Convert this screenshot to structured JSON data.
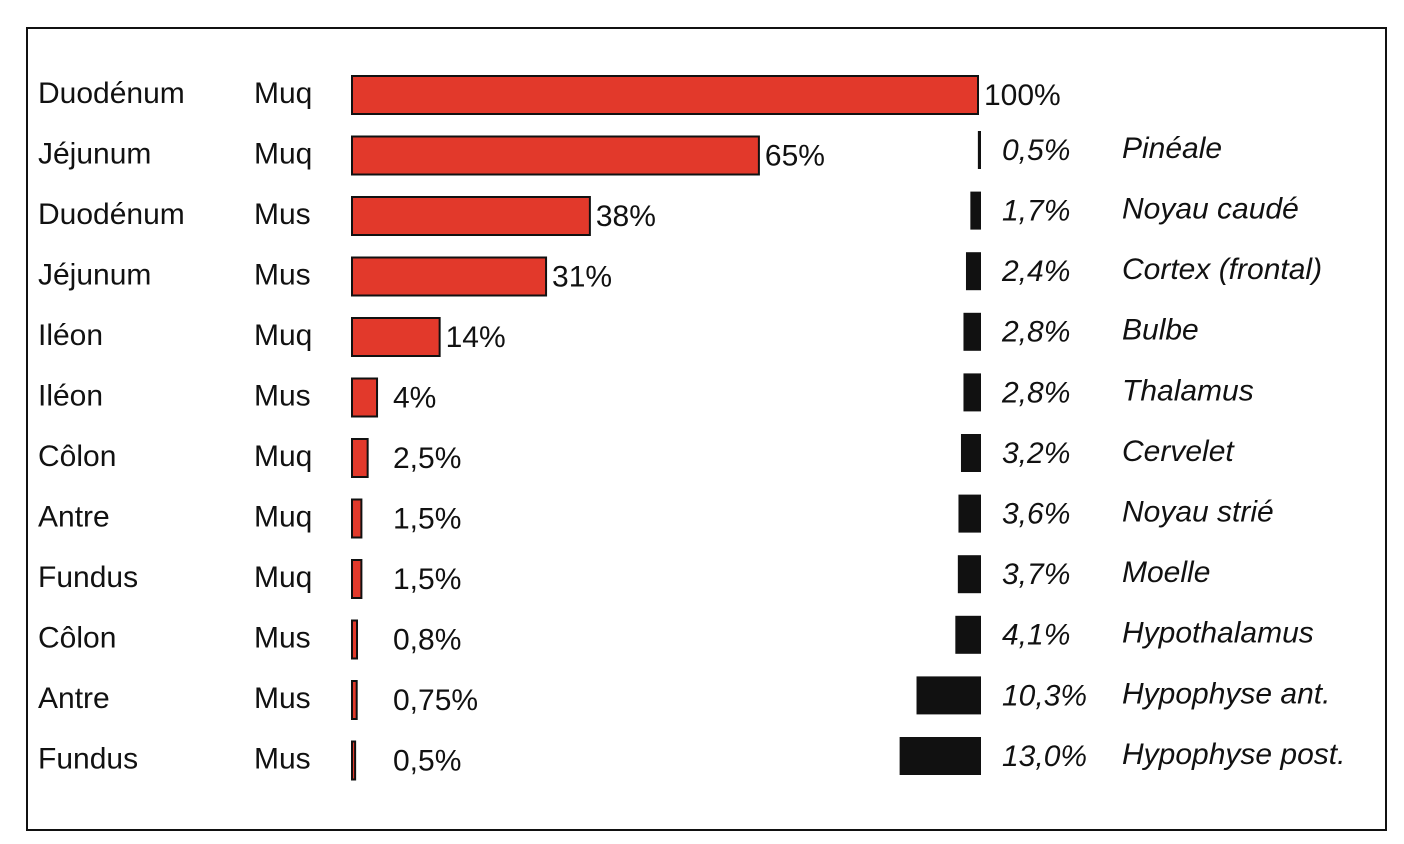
{
  "chart_data": [
    {
      "type": "bar",
      "categories": [
        "Duodénum",
        "Jéjunum",
        "Duodénum",
        "Jéjunum",
        "Iléon",
        "Iléon",
        "Côlon",
        "Antre",
        "Fundus",
        "Côlon",
        "Antre",
        "Fundus"
      ],
      "tissues": [
        "Muq",
        "Muq",
        "Mus",
        "Mus",
        "Muq",
        "Mus",
        "Muq",
        "Muq",
        "Muq",
        "Mus",
        "Mus",
        "Mus"
      ],
      "values": [
        100,
        65,
        38,
        31,
        14,
        4,
        2.5,
        1.5,
        1.5,
        0.8,
        0.75,
        0.5
      ],
      "value_labels": [
        "100%",
        "65%",
        "38%",
        "31%",
        "14%",
        "4%",
        "2,5%",
        "1,5%",
        "1,5%",
        "0,8%",
        "0,75%",
        "0,5%"
      ],
      "color": "#e2392b",
      "xlim": [
        0,
        100
      ]
    },
    {
      "type": "bar",
      "categories": [
        "Pinéale",
        "Noyau caudé",
        "Cortex (frontal)",
        "Bulbe",
        "Thalamus",
        "Cervelet",
        "Noyau strié",
        "Moelle",
        "Hypothalamus",
        "Hypophyse ant.",
        "Hypophyse post."
      ],
      "values": [
        0.5,
        1.7,
        2.4,
        2.8,
        2.8,
        3.2,
        3.6,
        3.7,
        4.1,
        10.3,
        13.0
      ],
      "value_labels": [
        "0,5%",
        "1,7%",
        "2,4%",
        "2,8%",
        "2,8%",
        "3,2%",
        "3,6%",
        "3,7%",
        "4,1%",
        "10,3%",
        "13,0%"
      ],
      "color": "#111111",
      "xlim": [
        0,
        100
      ]
    }
  ]
}
